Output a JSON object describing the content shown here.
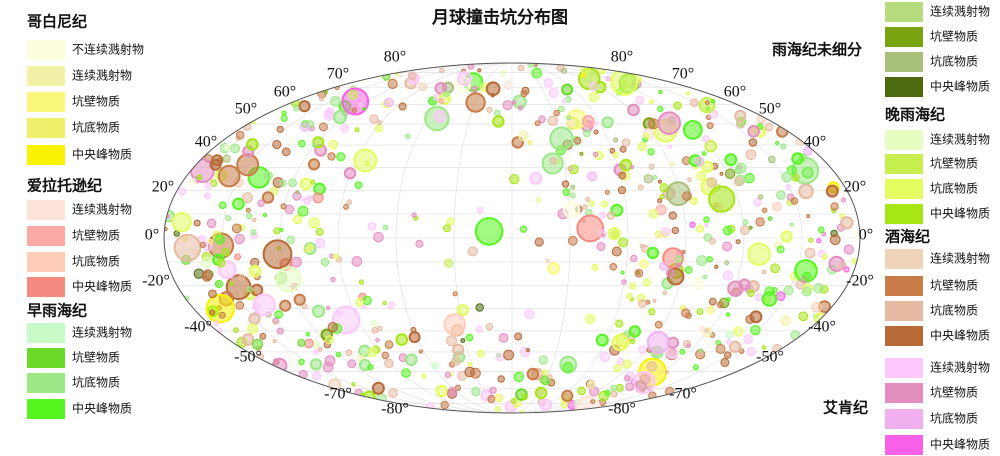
{
  "title": "月球撞击坑分布图",
  "legend_left": [
    {
      "title": "哥白尼纪",
      "items": [
        {
          "label": "不连续溅射物",
          "color": "#fdfde0"
        },
        {
          "label": "连续溅射物",
          "color": "#f3f0a8"
        },
        {
          "label": "坑壁物质",
          "color": "#fbf77a"
        },
        {
          "label": "坑底物质",
          "color": "#f0ee6a"
        },
        {
          "label": "中央峰物质",
          "color": "#f9f200"
        }
      ]
    },
    {
      "title": "爱拉托逊纪",
      "items": [
        {
          "label": "连续溅射物",
          "color": "#fde3d8"
        },
        {
          "label": "坑壁物质",
          "color": "#fbaaa5"
        },
        {
          "label": "坑底物质",
          "color": "#fdcdb8"
        },
        {
          "label": "中央峰物质",
          "color": "#f58a80"
        }
      ]
    },
    {
      "title": "早雨海纪",
      "items": [
        {
          "label": "连续溅射物",
          "color": "#c9fbc8"
        },
        {
          "label": "坑壁物质",
          "color": "#6ad92a"
        },
        {
          "label": "坑底物质",
          "color": "#9ce888"
        },
        {
          "label": "中央峰物质",
          "color": "#55f520"
        }
      ]
    }
  ],
  "legend_right": [
    {
      "title": "雨海纪未细分",
      "items": [
        {
          "label": "连续溅射物",
          "color": "#b7dc7e"
        },
        {
          "label": "坑壁物质",
          "color": "#7aa410"
        },
        {
          "label": "坑底物质",
          "color": "#a8c078"
        },
        {
          "label": "中央峰物质",
          "color": "#4e6a10"
        }
      ]
    },
    {
      "title": "晚雨海纪",
      "items": [
        {
          "label": "连续溅射物",
          "color": "#e6fcc0"
        },
        {
          "label": "坑壁物质",
          "color": "#c8ef50"
        },
        {
          "label": "坑底物质",
          "color": "#e4fc60"
        },
        {
          "label": "中央峰物质",
          "color": "#a5e614"
        }
      ]
    },
    {
      "title": "酒海纪",
      "items": [
        {
          "label": "连续溅射物",
          "color": "#f0d4b8"
        },
        {
          "label": "坑壁物质",
          "color": "#c87c48"
        },
        {
          "label": "坑底物质",
          "color": "#e6baa0"
        },
        {
          "label": "中央峰物质",
          "color": "#b86a36"
        }
      ]
    },
    {
      "title": "艾肯纪",
      "items": [
        {
          "label": "连续溅射物",
          "color": "#fcc8fc"
        },
        {
          "label": "坑壁物质",
          "color": "#e48ec0"
        },
        {
          "label": "坑底物质",
          "color": "#f0b0f0"
        },
        {
          "label": "中央峰物质",
          "color": "#f860e8"
        }
      ]
    }
  ],
  "latitude_labels": {
    "left": [
      "80°",
      "70°",
      "60°",
      "50°",
      "40°",
      "20°",
      "0°",
      "-20°",
      "-40°",
      "-50°",
      "-70°",
      "-80°"
    ],
    "right": [
      "80°",
      "70°",
      "60°",
      "50°",
      "40°",
      "20°",
      "0°",
      "-20°",
      "-40°",
      "-50°",
      "-70°",
      "-80°"
    ]
  }
}
